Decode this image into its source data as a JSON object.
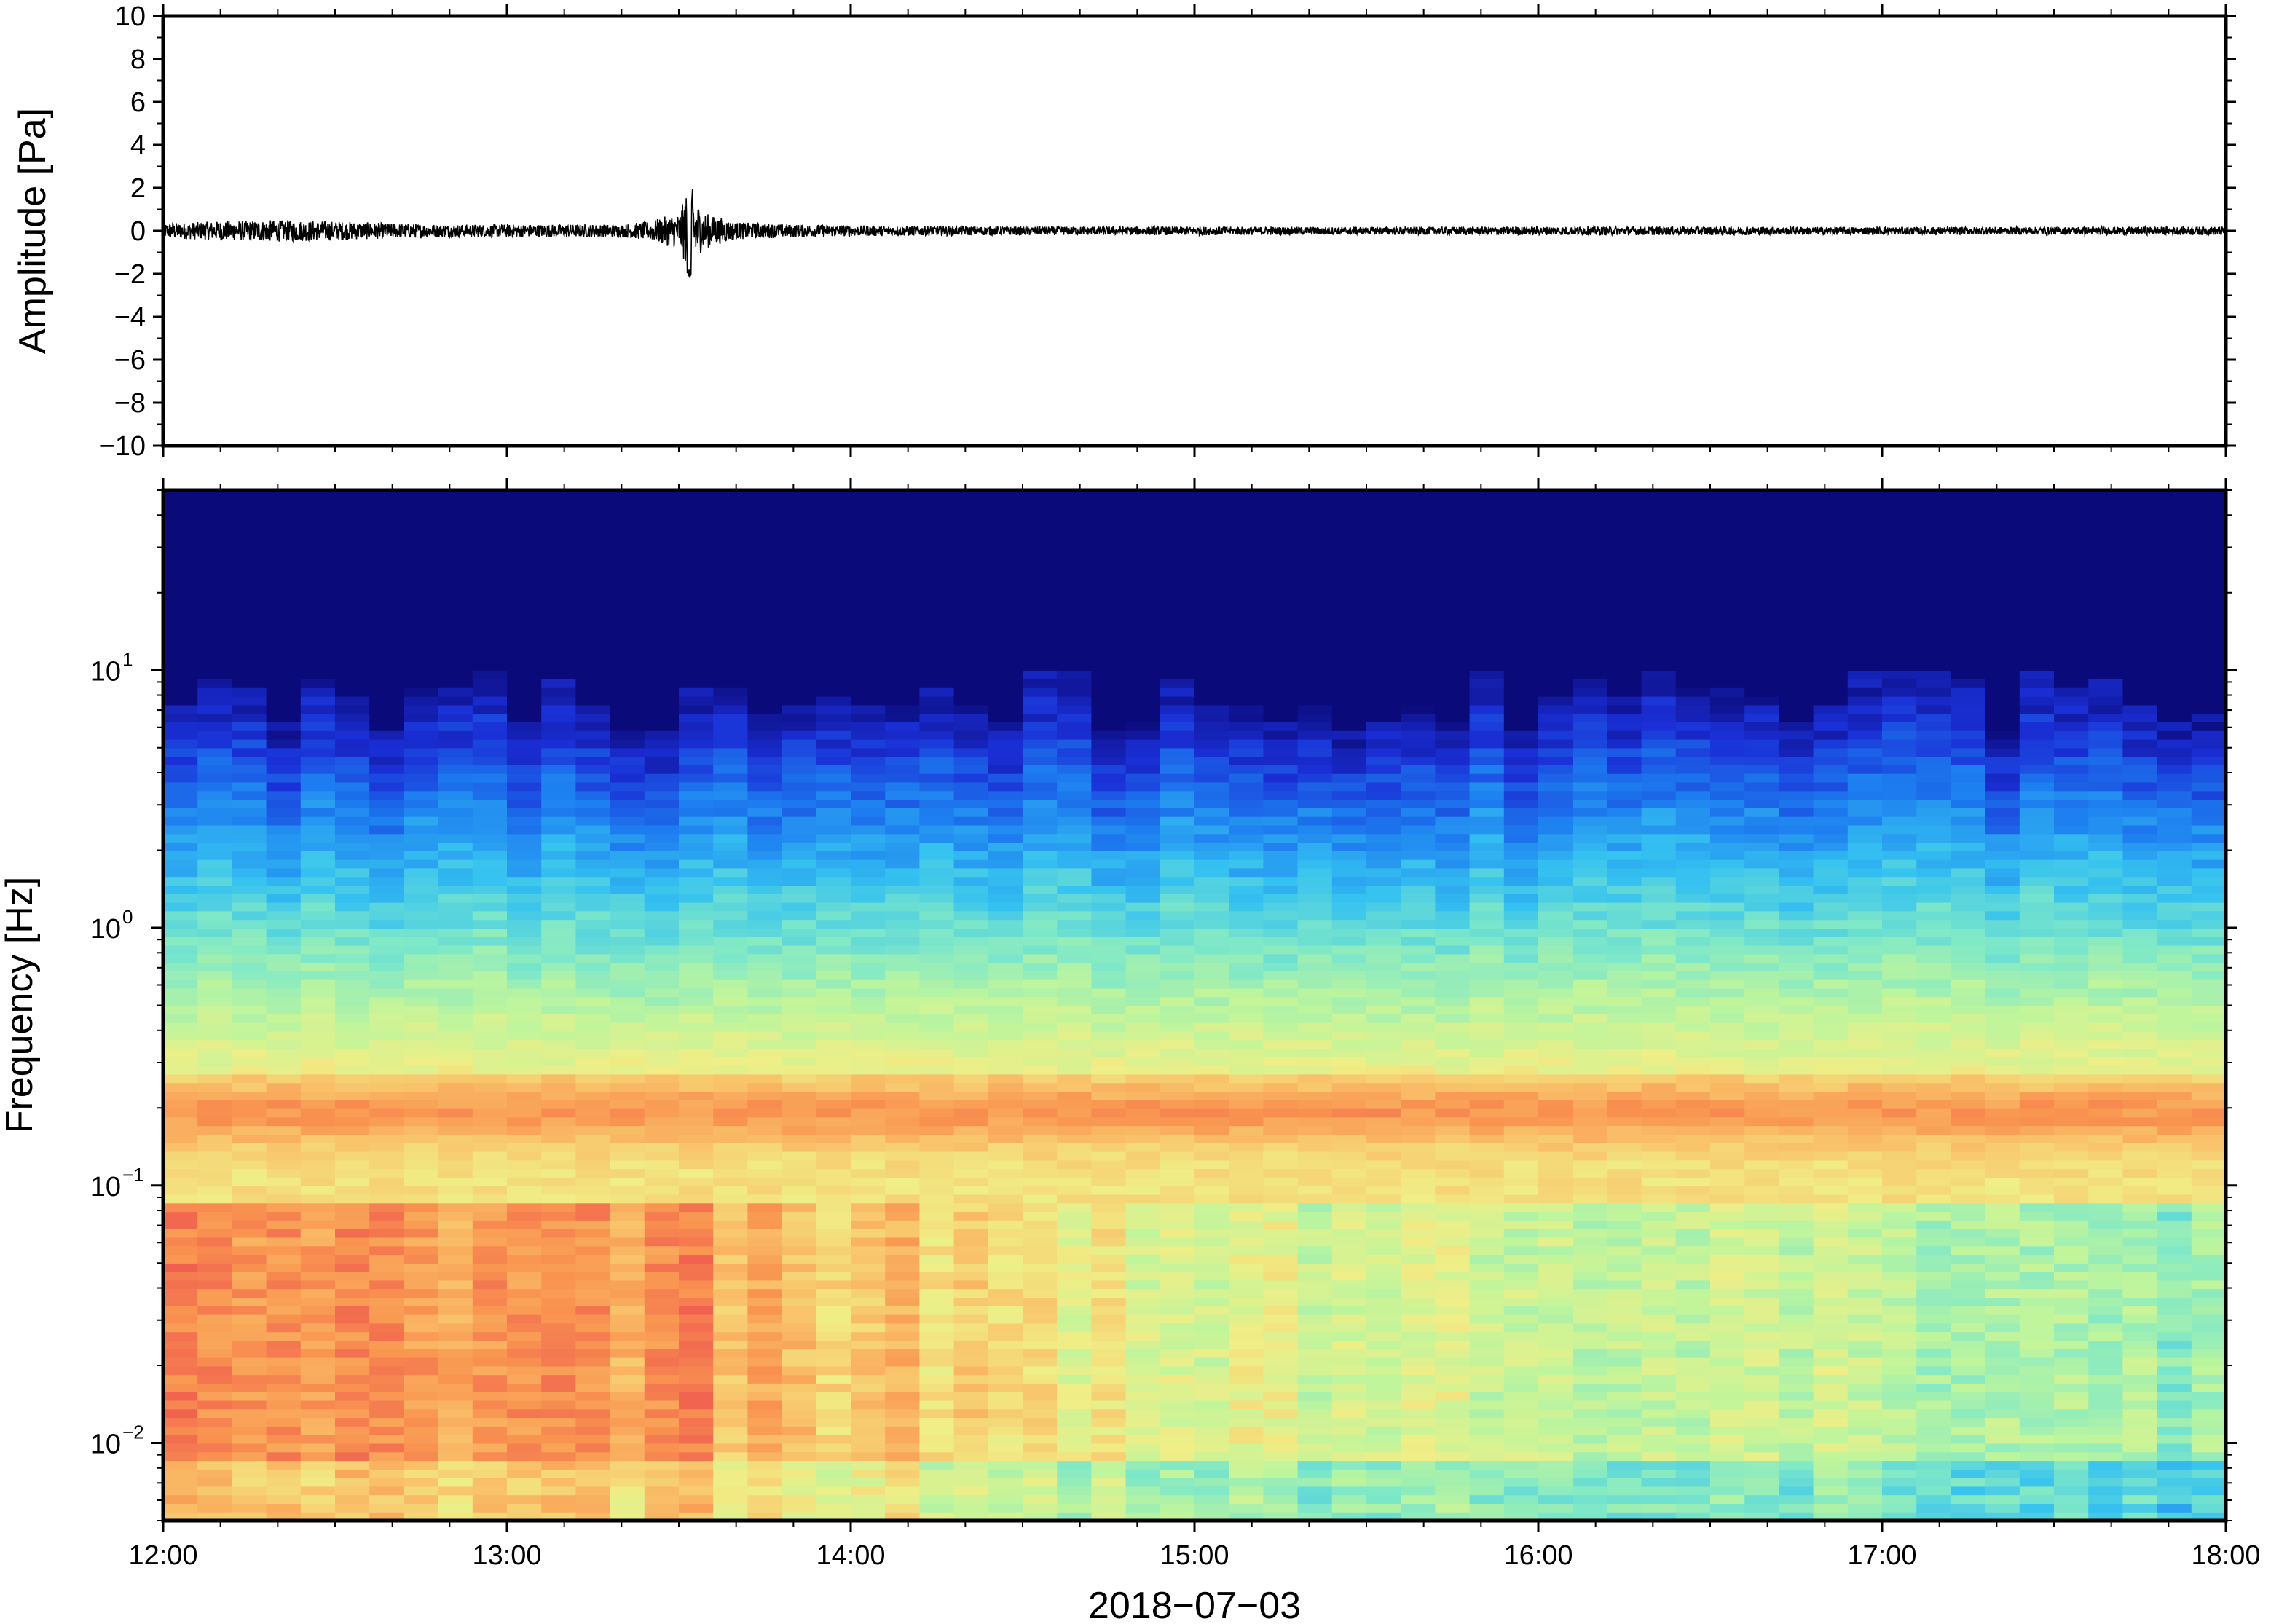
{
  "chart_data": [
    {
      "type": "line",
      "panel": "waveform",
      "title": "",
      "ylabel": "Amplitude [Pa]",
      "ylim": [
        -10,
        10
      ],
      "yticks": [
        "10",
        "8",
        "6",
        "4",
        "2",
        "0",
        "−2",
        "−4",
        "−6",
        "−8",
        "−10"
      ],
      "ytick_values": [
        10,
        8,
        6,
        4,
        2,
        0,
        -2,
        -4,
        -6,
        -8,
        -10
      ],
      "xlim": [
        "12:00",
        "18:00"
      ],
      "grid": false,
      "line_color": "#000000",
      "series": [
        {
          "x": [
            "12:00",
            "12:10",
            "12:20",
            "12:30",
            "12:40",
            "12:50",
            "13:00",
            "13:10",
            "13:20",
            "13:25",
            "13:28",
            "13:30",
            "13:32",
            "13:34",
            "13:36",
            "13:40",
            "13:50",
            "14:00",
            "14:30",
            "15:00",
            "15:30",
            "16:00",
            "16:30",
            "17:00",
            "17:30",
            "18:00"
          ],
          "envelope": [
            0.35,
            0.45,
            0.5,
            0.45,
            0.35,
            0.3,
            0.3,
            0.3,
            0.3,
            0.45,
            0.7,
            0.8,
            2.2,
            0.9,
            0.7,
            0.4,
            0.3,
            0.25,
            0.2,
            0.2,
            0.18,
            0.2,
            0.2,
            0.18,
            0.18,
            0.2
          ]
        }
      ]
    },
    {
      "type": "heatmap",
      "panel": "spectrogram",
      "title": "",
      "ylabel": "Frequency [Hz]",
      "xlabel": "2018−07−03",
      "yscale": "log",
      "ylim": [
        0.005,
        50
      ],
      "yticks": [
        {
          "base": "10",
          "exp": "1",
          "value": 10
        },
        {
          "base": "10",
          "exp": "0",
          "value": 1
        },
        {
          "base": "10",
          "exp": "−1",
          "value": 0.1
        },
        {
          "base": "10",
          "exp": "−2",
          "value": 0.01
        }
      ],
      "xticks": [
        "12:00",
        "13:00",
        "14:00",
        "15:00",
        "16:00",
        "17:00",
        "18:00"
      ],
      "xtick_hours": [
        12,
        13,
        14,
        15,
        16,
        17,
        18
      ],
      "colormap": [
        "#0b0a7a",
        "#1a2fd6",
        "#1d7ef0",
        "#35c2f0",
        "#7ee8c8",
        "#bff59c",
        "#f0ee86",
        "#f9c36a",
        "#f99450",
        "#ef5a4f"
      ],
      "ridge_frequency_hz": 0.2,
      "columns": 60,
      "hot_bursts": [
        {
          "center_hour": 12.4,
          "low_band_level": 0.88
        },
        {
          "center_hour": 13.15,
          "low_band_level": 0.9
        },
        {
          "center_hour": 13.5,
          "low_band_level": 0.98
        },
        {
          "center_hour": 14.15,
          "low_band_level": 0.85
        }
      ],
      "low_band_level_trend": [
        0.88,
        0.86,
        0.82,
        0.72,
        0.62,
        0.6,
        0.58,
        0.55,
        0.5
      ],
      "grid": false
    }
  ]
}
